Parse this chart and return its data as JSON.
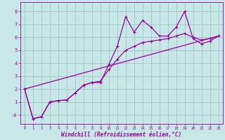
{
  "xlabel": "Windchill (Refroidissement éolien,°C)",
  "bg_color": "#c8e8e8",
  "line_color": "#990099",
  "grid_color": "#99bbbb",
  "xlim": [
    -0.5,
    23.5
  ],
  "ylim": [
    -0.7,
    8.7
  ],
  "xticks": [
    0,
    1,
    2,
    3,
    4,
    5,
    6,
    7,
    8,
    9,
    10,
    11,
    12,
    13,
    14,
    15,
    16,
    17,
    18,
    19,
    20,
    21,
    22,
    23
  ],
  "yticks": [
    0,
    1,
    2,
    3,
    4,
    5,
    6,
    7,
    8
  ],
  "ytick_labels": [
    "-0",
    "1",
    "2",
    "3",
    "4",
    "5",
    "6",
    "7",
    "8"
  ],
  "line1_x": [
    0,
    1,
    2,
    3,
    4,
    5,
    6,
    7,
    8,
    9,
    10,
    11,
    12,
    13,
    14,
    15,
    16,
    17,
    18,
    19,
    20,
    21,
    22,
    23
  ],
  "line1_y": [
    2.0,
    -0.3,
    -0.15,
    1.0,
    1.1,
    1.15,
    1.7,
    2.3,
    2.5,
    2.5,
    3.9,
    5.3,
    7.6,
    6.4,
    7.3,
    6.8,
    6.1,
    6.1,
    6.8,
    8.0,
    5.9,
    5.5,
    5.7,
    6.1
  ],
  "line2_x": [
    0,
    1,
    2,
    3,
    4,
    5,
    6,
    7,
    8,
    9,
    10,
    11,
    12,
    13,
    14,
    15,
    16,
    17,
    18,
    19,
    20,
    21,
    22,
    23
  ],
  "line2_y": [
    2.0,
    -0.3,
    -0.15,
    1.0,
    1.1,
    1.15,
    1.7,
    2.3,
    2.5,
    2.6,
    3.5,
    4.3,
    5.0,
    5.3,
    5.6,
    5.7,
    5.8,
    5.9,
    6.1,
    6.3,
    6.0,
    5.8,
    5.9,
    6.1
  ],
  "line3_x": [
    0,
    23
  ],
  "line3_y": [
    2.0,
    6.1
  ],
  "marker": "+"
}
